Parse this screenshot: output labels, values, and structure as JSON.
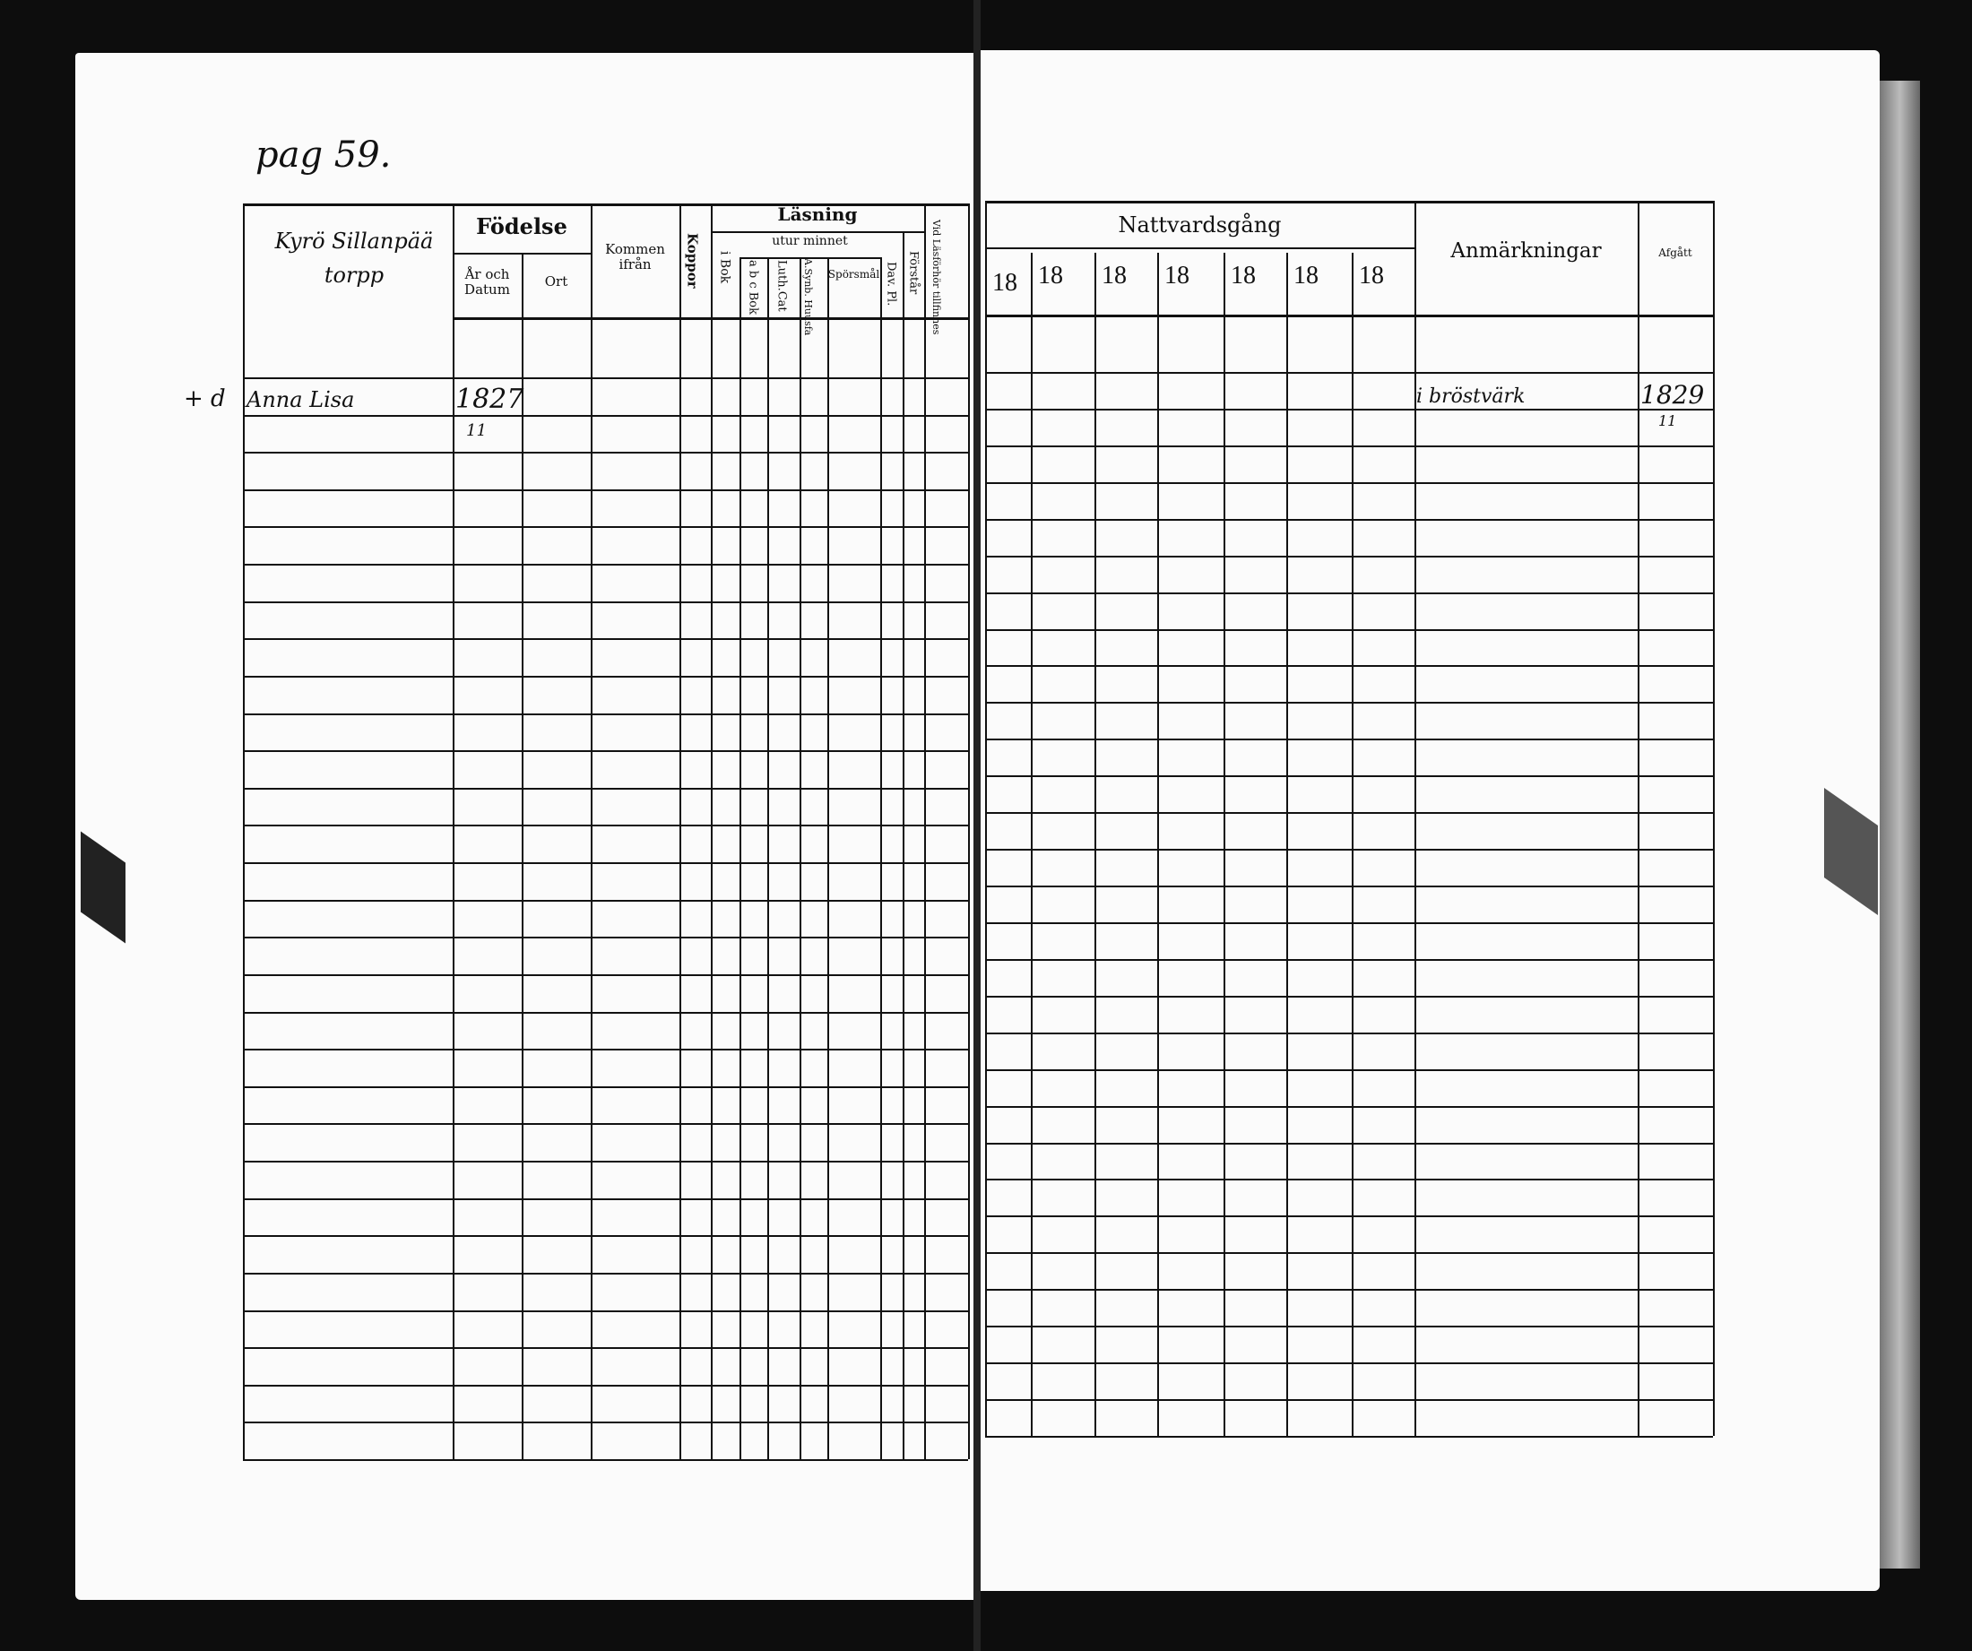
{
  "left_page": {
    "page_note": "pag 59.",
    "name_header": "Kyrö Sillanpää torpp",
    "headers": {
      "fodelse": "Födelse",
      "ar_och_datum": "År och Datum",
      "ort": "Ort",
      "kommen_ifran": "Kommen ifrån",
      "koppor": "Koppor",
      "lasning": "Läsning",
      "i_bok": "i Bok",
      "utur_minnet": "utur minnet",
      "abc_bok": "a b c Bok",
      "luth_cat": "Luth.Cat",
      "a_synb_huusfa": "A.Synb. Huusfa",
      "sporsmal": "Spörsmål",
      "dav_pl": "Dav. Pl.",
      "forstar": "Förstår",
      "vid_lasforhor": "Vid Läsförhör tillfinnes"
    },
    "entries": [
      {
        "mark": "+ d",
        "name": "Anna Lisa",
        "year": "1827",
        "day": "11"
      }
    ]
  },
  "right_page": {
    "headers": {
      "nattvardsgang": "Nattvardsgång",
      "years": [
        "18",
        "18",
        "18",
        "18",
        "18",
        "18",
        "18"
      ],
      "anmarkningar": "Anmärkningar",
      "afgatt": "Afgått"
    },
    "entries": [
      {
        "remark": "i bröstvärk",
        "year": "1829",
        "day": "11"
      }
    ]
  }
}
